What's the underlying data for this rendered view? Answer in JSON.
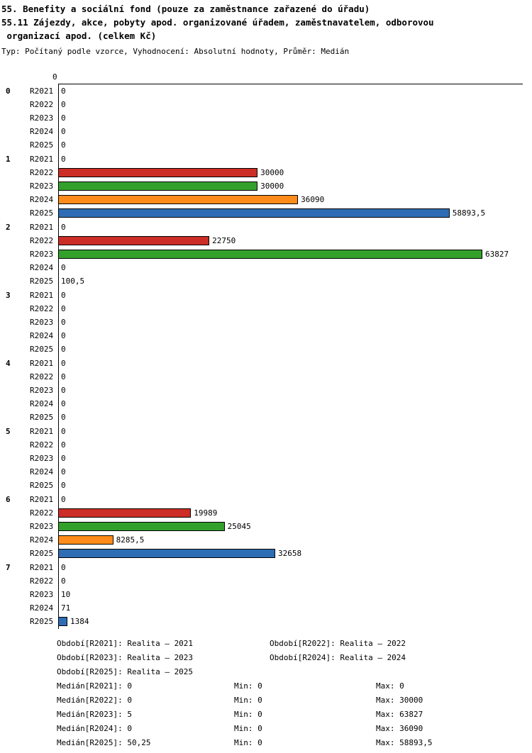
{
  "header": {
    "title_line1": "55. Benefity a sociální fond (pouze za zaměstnance zařazené do úřadu)",
    "title_line2": "55.11 Zájezdy, akce, pobyty apod. organizované úřadem, zaměstnavatelem, odborovou",
    "title_line3": " organizací apod. (celkem Kč)",
    "subtitle": "Typ: Počítaný podle vzorce, Vyhodnocení: Absolutní hodnoty, Průměr: Medián"
  },
  "chart_data": {
    "type": "bar",
    "orientation": "horizontal",
    "axis_origin_label": "0",
    "max_value": 63827,
    "series_order": [
      "R2021",
      "R2022",
      "R2023",
      "R2024",
      "R2025"
    ],
    "series_colors": {
      "R2022": "#cc2d26",
      "R2023": "#33a02c",
      "R2024": "#ff8c1a",
      "R2025": "#2e6db4"
    },
    "groups": [
      {
        "label": "0",
        "values": [
          0,
          0,
          0,
          0,
          0
        ],
        "displays": [
          "0",
          "0",
          "0",
          "0",
          "0"
        ]
      },
      {
        "label": "1",
        "values": [
          0,
          30000,
          30000,
          36090,
          58893.5
        ],
        "displays": [
          "0",
          "30000",
          "30000",
          "36090",
          "58893,5"
        ]
      },
      {
        "label": "2",
        "values": [
          0,
          22750,
          63827,
          0,
          100.5
        ],
        "displays": [
          "0",
          "22750",
          "63827",
          "0",
          "100,5"
        ]
      },
      {
        "label": "3",
        "values": [
          0,
          0,
          0,
          0,
          0
        ],
        "displays": [
          "0",
          "0",
          "0",
          "0",
          "0"
        ]
      },
      {
        "label": "4",
        "values": [
          0,
          0,
          0,
          0,
          0
        ],
        "displays": [
          "0",
          "0",
          "0",
          "0",
          "0"
        ]
      },
      {
        "label": "5",
        "values": [
          0,
          0,
          0,
          0,
          0
        ],
        "displays": [
          "0",
          "0",
          "0",
          "0",
          "0"
        ]
      },
      {
        "label": "6",
        "values": [
          0,
          19989,
          25045,
          8285.5,
          32658
        ],
        "displays": [
          "0",
          "19989",
          "25045",
          "8285,5",
          "32658"
        ]
      },
      {
        "label": "7",
        "values": [
          0,
          0,
          10,
          71,
          1384
        ],
        "displays": [
          "0",
          "0",
          "10",
          "71",
          "1384"
        ]
      }
    ]
  },
  "legend": {
    "items": [
      "Období[R2021]: Realita – 2021",
      "Období[R2022]: Realita – 2022",
      "Období[R2023]: Realita – 2023",
      "Období[R2024]: Realita – 2024",
      "Období[R2025]: Realita – 2025"
    ]
  },
  "stats": {
    "rows": [
      {
        "median": "Medián[R2021]: 0",
        "min": "Min: 0",
        "max": "Max: 0"
      },
      {
        "median": "Medián[R2022]: 0",
        "min": "Min: 0",
        "max": "Max: 30000"
      },
      {
        "median": "Medián[R2023]: 5",
        "min": "Min: 0",
        "max": "Max: 63827"
      },
      {
        "median": "Medián[R2024]: 0",
        "min": "Min: 0",
        "max": "Max: 36090"
      },
      {
        "median": "Medián[R2025]: 50,25",
        "min": "Min: 0",
        "max": "Max: 58893,5"
      }
    ]
  }
}
